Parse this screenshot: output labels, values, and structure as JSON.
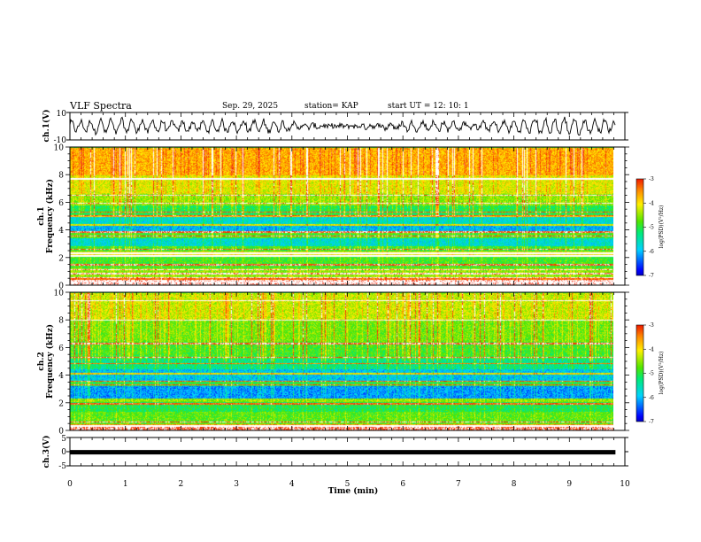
{
  "chart_data": {
    "type": "heatmap",
    "header": {
      "title": "VLF Spectra",
      "date": "Sep. 29, 2025",
      "station": "station= KAP",
      "start": "start  UT =   12: 10: 1"
    },
    "xlabel": "Time  (min)",
    "xlim": [
      0,
      10
    ],
    "x_ticks": [
      "0",
      "1",
      "2",
      "3",
      "4",
      "5",
      "6",
      "7",
      "8",
      "9",
      "10"
    ],
    "panels": [
      {
        "name": "ch1-waveform",
        "type": "line",
        "ylabel": "ch.1(V)",
        "ylim": [
          -10,
          10
        ],
        "y_ticks": [
          "10",
          "-10"
        ],
        "data_end_min": 9.83,
        "series_amplitude": 3.5
      },
      {
        "name": "ch1-spectrogram",
        "type": "heatmap",
        "ylabel_top": "ch.1",
        "ylabel": "Frequency (kHz)",
        "ylim": [
          0,
          10
        ],
        "y_ticks": [
          "0",
          "2",
          "4",
          "6",
          "8",
          "10"
        ],
        "data_end_min": 9.83,
        "colorbar": {
          "label": "log(PSD)(V²/Hz)",
          "range": [
            -7,
            -3
          ],
          "ticks": [
            "-3",
            "-4",
            "-5",
            "-6",
            "-7"
          ]
        },
        "band_levels_khz": [
          [
            0.0,
            0.5,
            -3.6
          ],
          [
            0.5,
            1.2,
            -4.6
          ],
          [
            1.2,
            2.0,
            -4.9
          ],
          [
            2.0,
            2.4,
            -4.2
          ],
          [
            2.4,
            2.8,
            -4.9
          ],
          [
            2.8,
            3.4,
            -5.6
          ],
          [
            3.4,
            3.9,
            -4.9
          ],
          [
            3.9,
            4.4,
            -5.9
          ],
          [
            4.4,
            5.0,
            -5.6
          ],
          [
            5.0,
            5.8,
            -5.1
          ],
          [
            5.8,
            6.6,
            -4.6
          ],
          [
            6.6,
            8.0,
            -4.3
          ],
          [
            8.0,
            10.0,
            -3.9
          ]
        ],
        "tone_lines_khz": [
          0.2,
          0.5,
          0.8,
          1.1,
          1.45,
          2.1,
          2.3,
          2.6,
          3.55,
          3.85,
          4.35,
          5.0,
          5.3,
          5.95,
          6.5,
          7.7
        ]
      },
      {
        "name": "ch2-spectrogram",
        "type": "heatmap",
        "ylabel_top": "ch.2",
        "ylabel": "Frequency (kHz)",
        "ylim": [
          0,
          10
        ],
        "y_ticks": [
          "0",
          "2",
          "4",
          "6",
          "8",
          "10"
        ],
        "data_end_min": 9.83,
        "colorbar": {
          "label": "log(PSD)(V²/Hz)",
          "range": [
            -7,
            -3
          ],
          "ticks": [
            "-3",
            "-4",
            "-5",
            "-6",
            "-7"
          ]
        },
        "band_levels_khz": [
          [
            0.0,
            0.4,
            -3.8
          ],
          [
            0.4,
            1.3,
            -4.8
          ],
          [
            1.3,
            2.0,
            -5.1
          ],
          [
            2.0,
            2.3,
            -4.6
          ],
          [
            2.3,
            3.2,
            -6.0
          ],
          [
            3.2,
            3.6,
            -5.1
          ],
          [
            3.6,
            4.4,
            -5.8
          ],
          [
            4.4,
            5.2,
            -5.3
          ],
          [
            5.2,
            6.4,
            -4.9
          ],
          [
            6.4,
            8.0,
            -4.7
          ],
          [
            8.0,
            10.0,
            -4.4
          ]
        ],
        "tone_lines_khz": [
          0.3,
          0.6,
          1.9,
          3.3,
          3.55,
          4.1,
          4.85,
          5.3,
          6.3,
          8.0,
          9.4
        ]
      },
      {
        "name": "ch3-waveform",
        "type": "line",
        "ylabel": "ch.3(V)",
        "ylim": [
          -5,
          5
        ],
        "y_ticks": [
          "5",
          "0",
          "-5"
        ],
        "data_end_min": 9.83,
        "series_level": -0.2
      }
    ]
  }
}
